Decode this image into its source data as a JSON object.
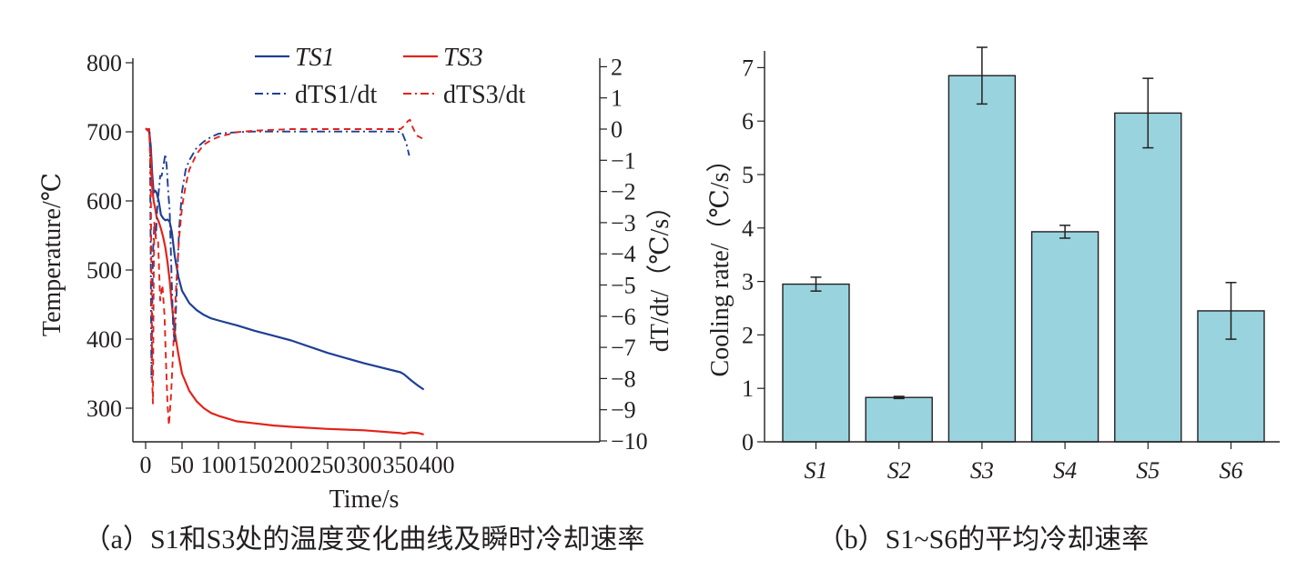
{
  "colors": {
    "s1": "#1f3f95",
    "s3": "#e2231a",
    "bar": "#99d4de",
    "ink": "#231f20"
  },
  "panel_a": {
    "caption": "（a）S1和S3处的温度变化曲线及瞬时冷却速率",
    "legend": {
      "ts1": "TS1",
      "ts3": "TS3",
      "dts1": "dTS1/dt",
      "dts3": "dTS3/dt"
    }
  },
  "panel_b": {
    "caption": "（b）S1~S6的平均冷却速率"
  },
  "chart_data": [
    {
      "type": "line",
      "xlabel": "Time/s",
      "ylabel": "Temperature/℃",
      "y2label": "dT/dt/（℃/s）",
      "xlim": [
        0,
        400
      ],
      "ylim": [
        250,
        800
      ],
      "y2lim": [
        -10,
        2
      ],
      "x_ticks": [
        0,
        50,
        100,
        150,
        200,
        250,
        300,
        350,
        400
      ],
      "y_ticks": [
        300,
        400,
        500,
        600,
        700,
        800
      ],
      "y2_ticks": [
        2,
        1,
        0,
        -1,
        -2,
        -3,
        -4,
        -5,
        -6,
        -7,
        -8,
        -9,
        -10
      ],
      "y2_tick_labels": [
        "2",
        "1",
        "0",
        "−1",
        "−2",
        "−3",
        "−4",
        "−5",
        "−6",
        "−7",
        "−8",
        "−9",
        "−10"
      ],
      "series": [
        {
          "name": "TS1",
          "axis": "left",
          "style": "solid",
          "color": "#1f3f95",
          "x": [
            0,
            5,
            7,
            9,
            11,
            13,
            15,
            18,
            21,
            24,
            27,
            30,
            33,
            36,
            40,
            45,
            50,
            60,
            70,
            80,
            90,
            100,
            125,
            150,
            175,
            200,
            250,
            300,
            350,
            355,
            365,
            375,
            382
          ],
          "y": [
            705,
            700,
            680,
            640,
            612,
            615,
            612,
            600,
            580,
            575,
            572,
            573,
            570,
            555,
            520,
            490,
            470,
            452,
            442,
            435,
            430,
            427,
            420,
            412,
            405,
            398,
            380,
            365,
            352,
            349,
            340,
            332,
            327
          ]
        },
        {
          "name": "TS3",
          "axis": "left",
          "style": "solid",
          "color": "#e2231a",
          "x": [
            0,
            5,
            7,
            9,
            11,
            13,
            15,
            18,
            21,
            24,
            27,
            30,
            33,
            36,
            40,
            45,
            50,
            60,
            70,
            80,
            90,
            100,
            125,
            150,
            175,
            200,
            250,
            300,
            350,
            355,
            365,
            375,
            382
          ],
          "y": [
            705,
            700,
            665,
            620,
            600,
            590,
            577,
            570,
            560,
            548,
            533,
            512,
            485,
            450,
            410,
            378,
            350,
            325,
            310,
            300,
            293,
            289,
            281,
            278,
            275,
            273,
            270,
            268,
            264,
            263,
            265,
            264,
            262
          ]
        },
        {
          "name": "dTS1/dt",
          "axis": "right",
          "style": "dashdot",
          "color": "#1f3f95",
          "x": [
            0,
            5,
            6,
            7,
            8,
            10,
            12,
            14,
            16,
            18,
            20,
            22,
            25,
            27,
            29,
            31,
            33,
            36,
            38,
            40,
            43,
            46,
            50,
            55,
            60,
            70,
            80,
            90,
            100,
            125,
            150,
            200,
            250,
            300,
            340,
            352,
            358,
            362
          ],
          "y": [
            0,
            0,
            -0.5,
            -4,
            -8,
            -4,
            -3,
            -3.5,
            -2.5,
            -2,
            -1.5,
            -1.5,
            -1.1,
            -0.8,
            -1.2,
            -2,
            -2.6,
            -5,
            -6.5,
            -6.8,
            -5,
            -3.2,
            -2,
            -1.3,
            -1.0,
            -0.6,
            -0.4,
            -0.25,
            -0.15,
            -0.1,
            -0.08,
            -0.08,
            -0.08,
            -0.08,
            -0.08,
            -0.1,
            -0.45,
            -0.85
          ]
        },
        {
          "name": "dTS3/dt",
          "axis": "right",
          "style": "dashed",
          "color": "#e2231a",
          "x": [
            0,
            5,
            7,
            9,
            10,
            11,
            12,
            14,
            17,
            20,
            23,
            26,
            28,
            30,
            32,
            35,
            38,
            42,
            46,
            50,
            55,
            60,
            70,
            80,
            90,
            100,
            125,
            150,
            200,
            250,
            300,
            350,
            355,
            360,
            363,
            366,
            372,
            380
          ],
          "y": [
            0,
            0,
            -1.5,
            -8,
            -8.8,
            -5,
            -3,
            -3.5,
            -3.5,
            -5.5,
            -5.0,
            -6.0,
            -7.5,
            -8.8,
            -9.5,
            -8.5,
            -7.0,
            -5.0,
            -3.5,
            -2.5,
            -1.8,
            -1.3,
            -0.8,
            -0.5,
            -0.35,
            -0.25,
            -0.1,
            -0.05,
            0,
            0,
            0,
            0,
            0.1,
            0.25,
            0.3,
            0.1,
            -0.2,
            -0.3
          ]
        }
      ]
    },
    {
      "type": "bar",
      "ylabel": "Cooling rate/（℃/s）",
      "ylim": [
        0,
        7.4
      ],
      "y_ticks": [
        0,
        1,
        2,
        3,
        4,
        5,
        6,
        7
      ],
      "categories": [
        "S1",
        "S2",
        "S3",
        "S4",
        "S5",
        "S6"
      ],
      "values": [
        2.95,
        0.83,
        6.85,
        3.93,
        6.15,
        2.45
      ],
      "errors": [
        0.13,
        0.02,
        0.53,
        0.12,
        0.65,
        0.53
      ]
    }
  ]
}
